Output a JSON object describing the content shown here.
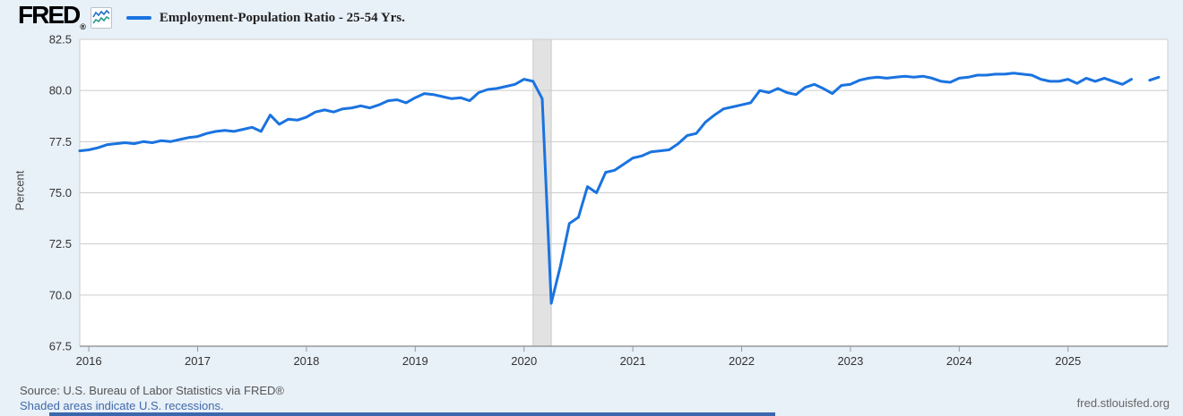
{
  "header": {
    "logo_text": "FRED",
    "registered_mark": "®",
    "legend_label": "Employment-Population Ratio - 25-54 Yrs."
  },
  "footer": {
    "source_line": "Source: U.S. Bureau of Labor Statistics via FRED®",
    "recession_note": "Shaded areas indicate U.S. recessions.",
    "site_url": "fred.stlouisfed.org"
  },
  "colors": {
    "page_background": "#e8f0f8",
    "plot_background": "#ffffff",
    "line": "#1a73e0",
    "gridline": "#cccccc",
    "axis_line": "#999999",
    "recession_band": "#e2e2e2",
    "recession_band_edge": "#c9c9c9",
    "tick_text": "#333333",
    "footer_link": "#4169a8"
  },
  "chart_data": {
    "type": "line",
    "title": "Employment-Population Ratio - 25-54 Yrs.",
    "xlabel": "",
    "ylabel": "Percent",
    "ylim": [
      67.5,
      82.5
    ],
    "y_ticks": [
      82.5,
      80.0,
      77.5,
      75.0,
      72.5,
      70.0,
      67.5
    ],
    "x_tick_years": [
      2016,
      2017,
      2018,
      2019,
      2020,
      2021,
      2022,
      2023,
      2024,
      2025
    ],
    "grid": "horizontal",
    "legend_position": "top-left",
    "line_color": "#1a73e0",
    "frequency": "monthly",
    "start_month": "2015-12",
    "end_month": "2025-11",
    "missing_months": [
      "2025-09"
    ],
    "recession_band": {
      "start": "2020-02",
      "end": "2020-04"
    },
    "values": [
      77.05,
      77.1,
      77.2,
      77.35,
      77.4,
      77.45,
      77.4,
      77.5,
      77.45,
      77.55,
      77.5,
      77.6,
      77.7,
      77.75,
      77.9,
      78.0,
      78.05,
      78.0,
      78.1,
      78.2,
      78.0,
      78.8,
      78.35,
      78.6,
      78.55,
      78.7,
      78.95,
      79.05,
      78.95,
      79.1,
      79.15,
      79.25,
      79.15,
      79.3,
      79.5,
      79.55,
      79.4,
      79.65,
      79.85,
      79.8,
      79.7,
      79.6,
      79.65,
      79.5,
      79.9,
      80.05,
      80.1,
      80.2,
      80.3,
      80.55,
      80.45,
      79.6,
      69.6,
      71.4,
      73.5,
      73.8,
      75.3,
      75.0,
      76.0,
      76.1,
      76.4,
      76.7,
      76.8,
      77.0,
      77.05,
      77.1,
      77.4,
      77.8,
      77.9,
      78.45,
      78.8,
      79.1,
      79.2,
      79.3,
      79.4,
      80.0,
      79.9,
      80.1,
      79.9,
      79.8,
      80.15,
      80.3,
      80.1,
      79.85,
      80.25,
      80.3,
      80.5,
      80.6,
      80.65,
      80.6,
      80.65,
      80.7,
      80.65,
      80.7,
      80.6,
      80.45,
      80.4,
      80.6,
      80.65,
      80.75,
      80.75,
      80.8,
      80.8,
      80.85,
      80.8,
      80.75,
      80.55,
      80.45,
      80.45,
      80.55,
      80.35,
      80.6,
      80.45,
      80.6,
      80.45,
      80.3,
      80.55,
      null,
      80.5,
      80.65
    ]
  }
}
